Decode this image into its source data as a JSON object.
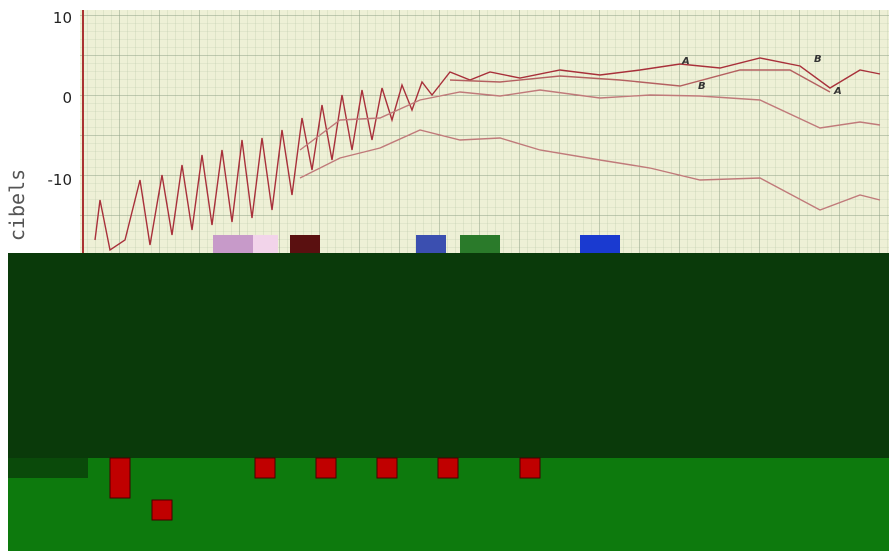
{
  "y_axis": {
    "label": "cibels",
    "ticks": [
      10,
      0,
      -10
    ]
  },
  "curve_labels": [
    "A",
    "A",
    "B",
    "B"
  ]
}
